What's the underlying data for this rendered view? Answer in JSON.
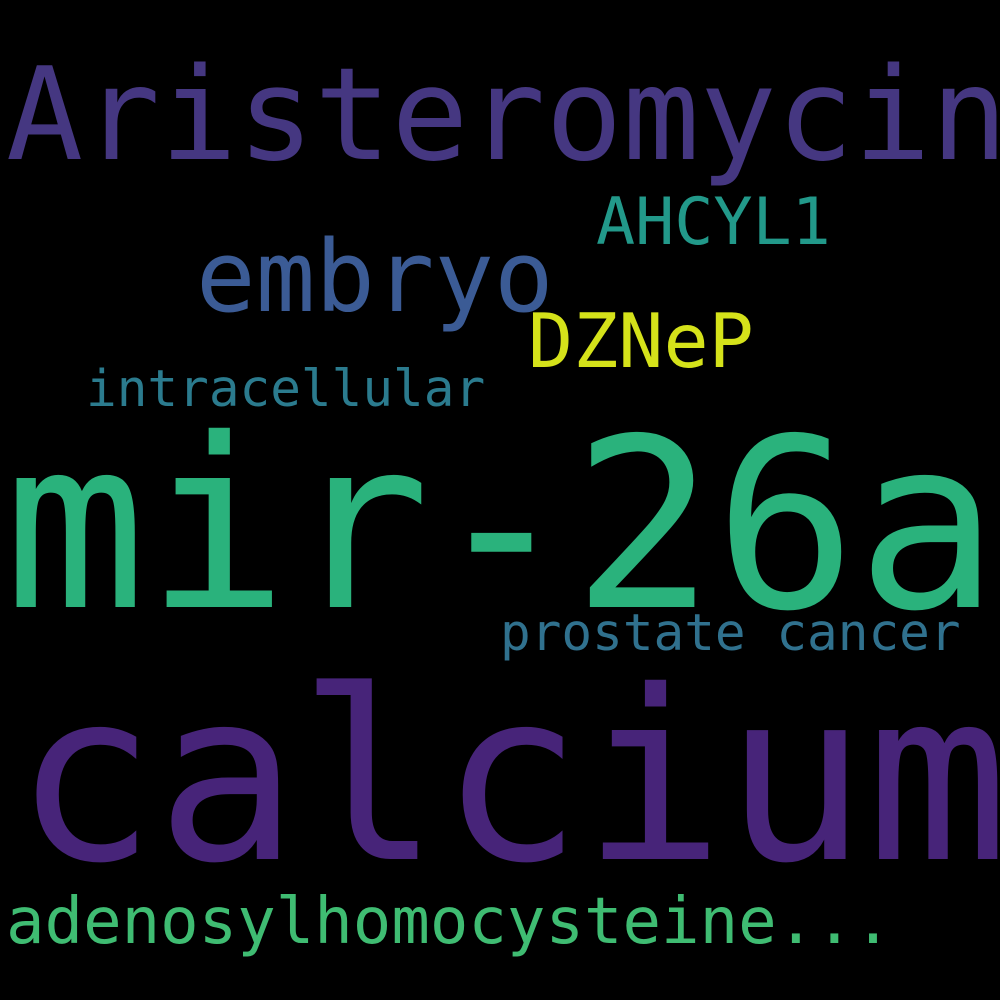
{
  "words": [
    {
      "text": "Aristeromycin",
      "color": "#453781"
    },
    {
      "text": "embryo",
      "color": "#3b5b95"
    },
    {
      "text": "AHCYL1",
      "color": "#22998a"
    },
    {
      "text": "DZNeP",
      "color": "#d5e21a"
    },
    {
      "text": "intracellular",
      "color": "#2b7b8e"
    },
    {
      "text": "mir-26a",
      "color": "#2ab27c"
    },
    {
      "text": "prostate cancer",
      "color": "#30718e"
    },
    {
      "text": "calcium",
      "color": "#472479"
    },
    {
      "text": "adenosylhomocysteine...",
      "color": "#3fbc72"
    }
  ]
}
